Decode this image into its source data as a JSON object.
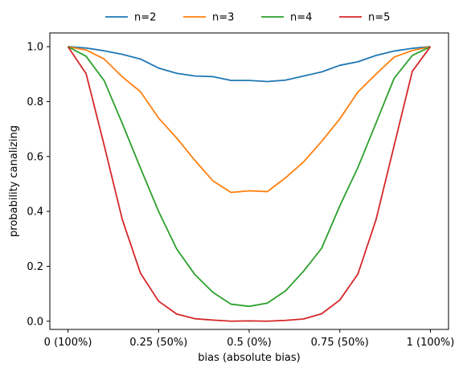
{
  "chart_data": {
    "type": "line",
    "title": "",
    "xlabel": "bias (absolute bias)",
    "ylabel": "probability canalizing",
    "xlim": [
      -0.05,
      1.05
    ],
    "ylim": [
      -0.03,
      1.05
    ],
    "grid": false,
    "legend_placement": "top-center",
    "xticks": [
      0,
      0.25,
      0.5,
      0.75,
      1
    ],
    "xtick_labels": [
      "0 (100%)",
      "0.25 (50%)",
      "0.5 (0%)",
      "0.75 (50%)",
      "1 (100%)"
    ],
    "yticks": [
      0,
      0.2,
      0.4,
      0.6,
      0.8,
      1
    ],
    "ytick_labels": [
      "0.0",
      "0.2",
      "0.4",
      "0.6",
      "0.8",
      "1.0"
    ],
    "x": [
      0,
      0.05,
      0.1,
      0.15,
      0.2,
      0.25,
      0.3,
      0.35,
      0.4,
      0.45,
      0.5,
      0.55,
      0.6,
      0.65,
      0.7,
      0.75,
      0.8,
      0.85,
      0.9,
      0.95,
      1
    ],
    "series": [
      {
        "name": "n=2",
        "color": "#1f77b4",
        "values": [
          1.0,
          0.995,
          0.985,
          0.972,
          0.955,
          0.922,
          0.903,
          0.893,
          0.891,
          0.877,
          0.877,
          0.873,
          0.878,
          0.893,
          0.908,
          0.932,
          0.945,
          0.968,
          0.984,
          0.994,
          1.0
        ]
      },
      {
        "name": "n=3",
        "color": "#ff7f0e",
        "values": [
          1.0,
          0.988,
          0.955,
          0.89,
          0.836,
          0.74,
          0.667,
          0.586,
          0.511,
          0.469,
          0.475,
          0.472,
          0.522,
          0.58,
          0.655,
          0.737,
          0.835,
          0.9,
          0.962,
          0.986,
          1.0
        ]
      },
      {
        "name": "n=4",
        "color": "#2ca02c",
        "values": [
          1.0,
          0.965,
          0.876,
          0.72,
          0.558,
          0.4,
          0.263,
          0.17,
          0.105,
          0.062,
          0.054,
          0.066,
          0.11,
          0.182,
          0.266,
          0.42,
          0.56,
          0.722,
          0.885,
          0.968,
          1.0
        ]
      },
      {
        "name": "n=5",
        "color": "#d62728",
        "values": [
          1.0,
          0.902,
          0.64,
          0.37,
          0.175,
          0.073,
          0.026,
          0.009,
          0.004,
          0.0,
          0.001,
          0.0,
          0.003,
          0.008,
          0.027,
          0.077,
          0.172,
          0.37,
          0.64,
          0.91,
          1.0
        ]
      }
    ]
  }
}
